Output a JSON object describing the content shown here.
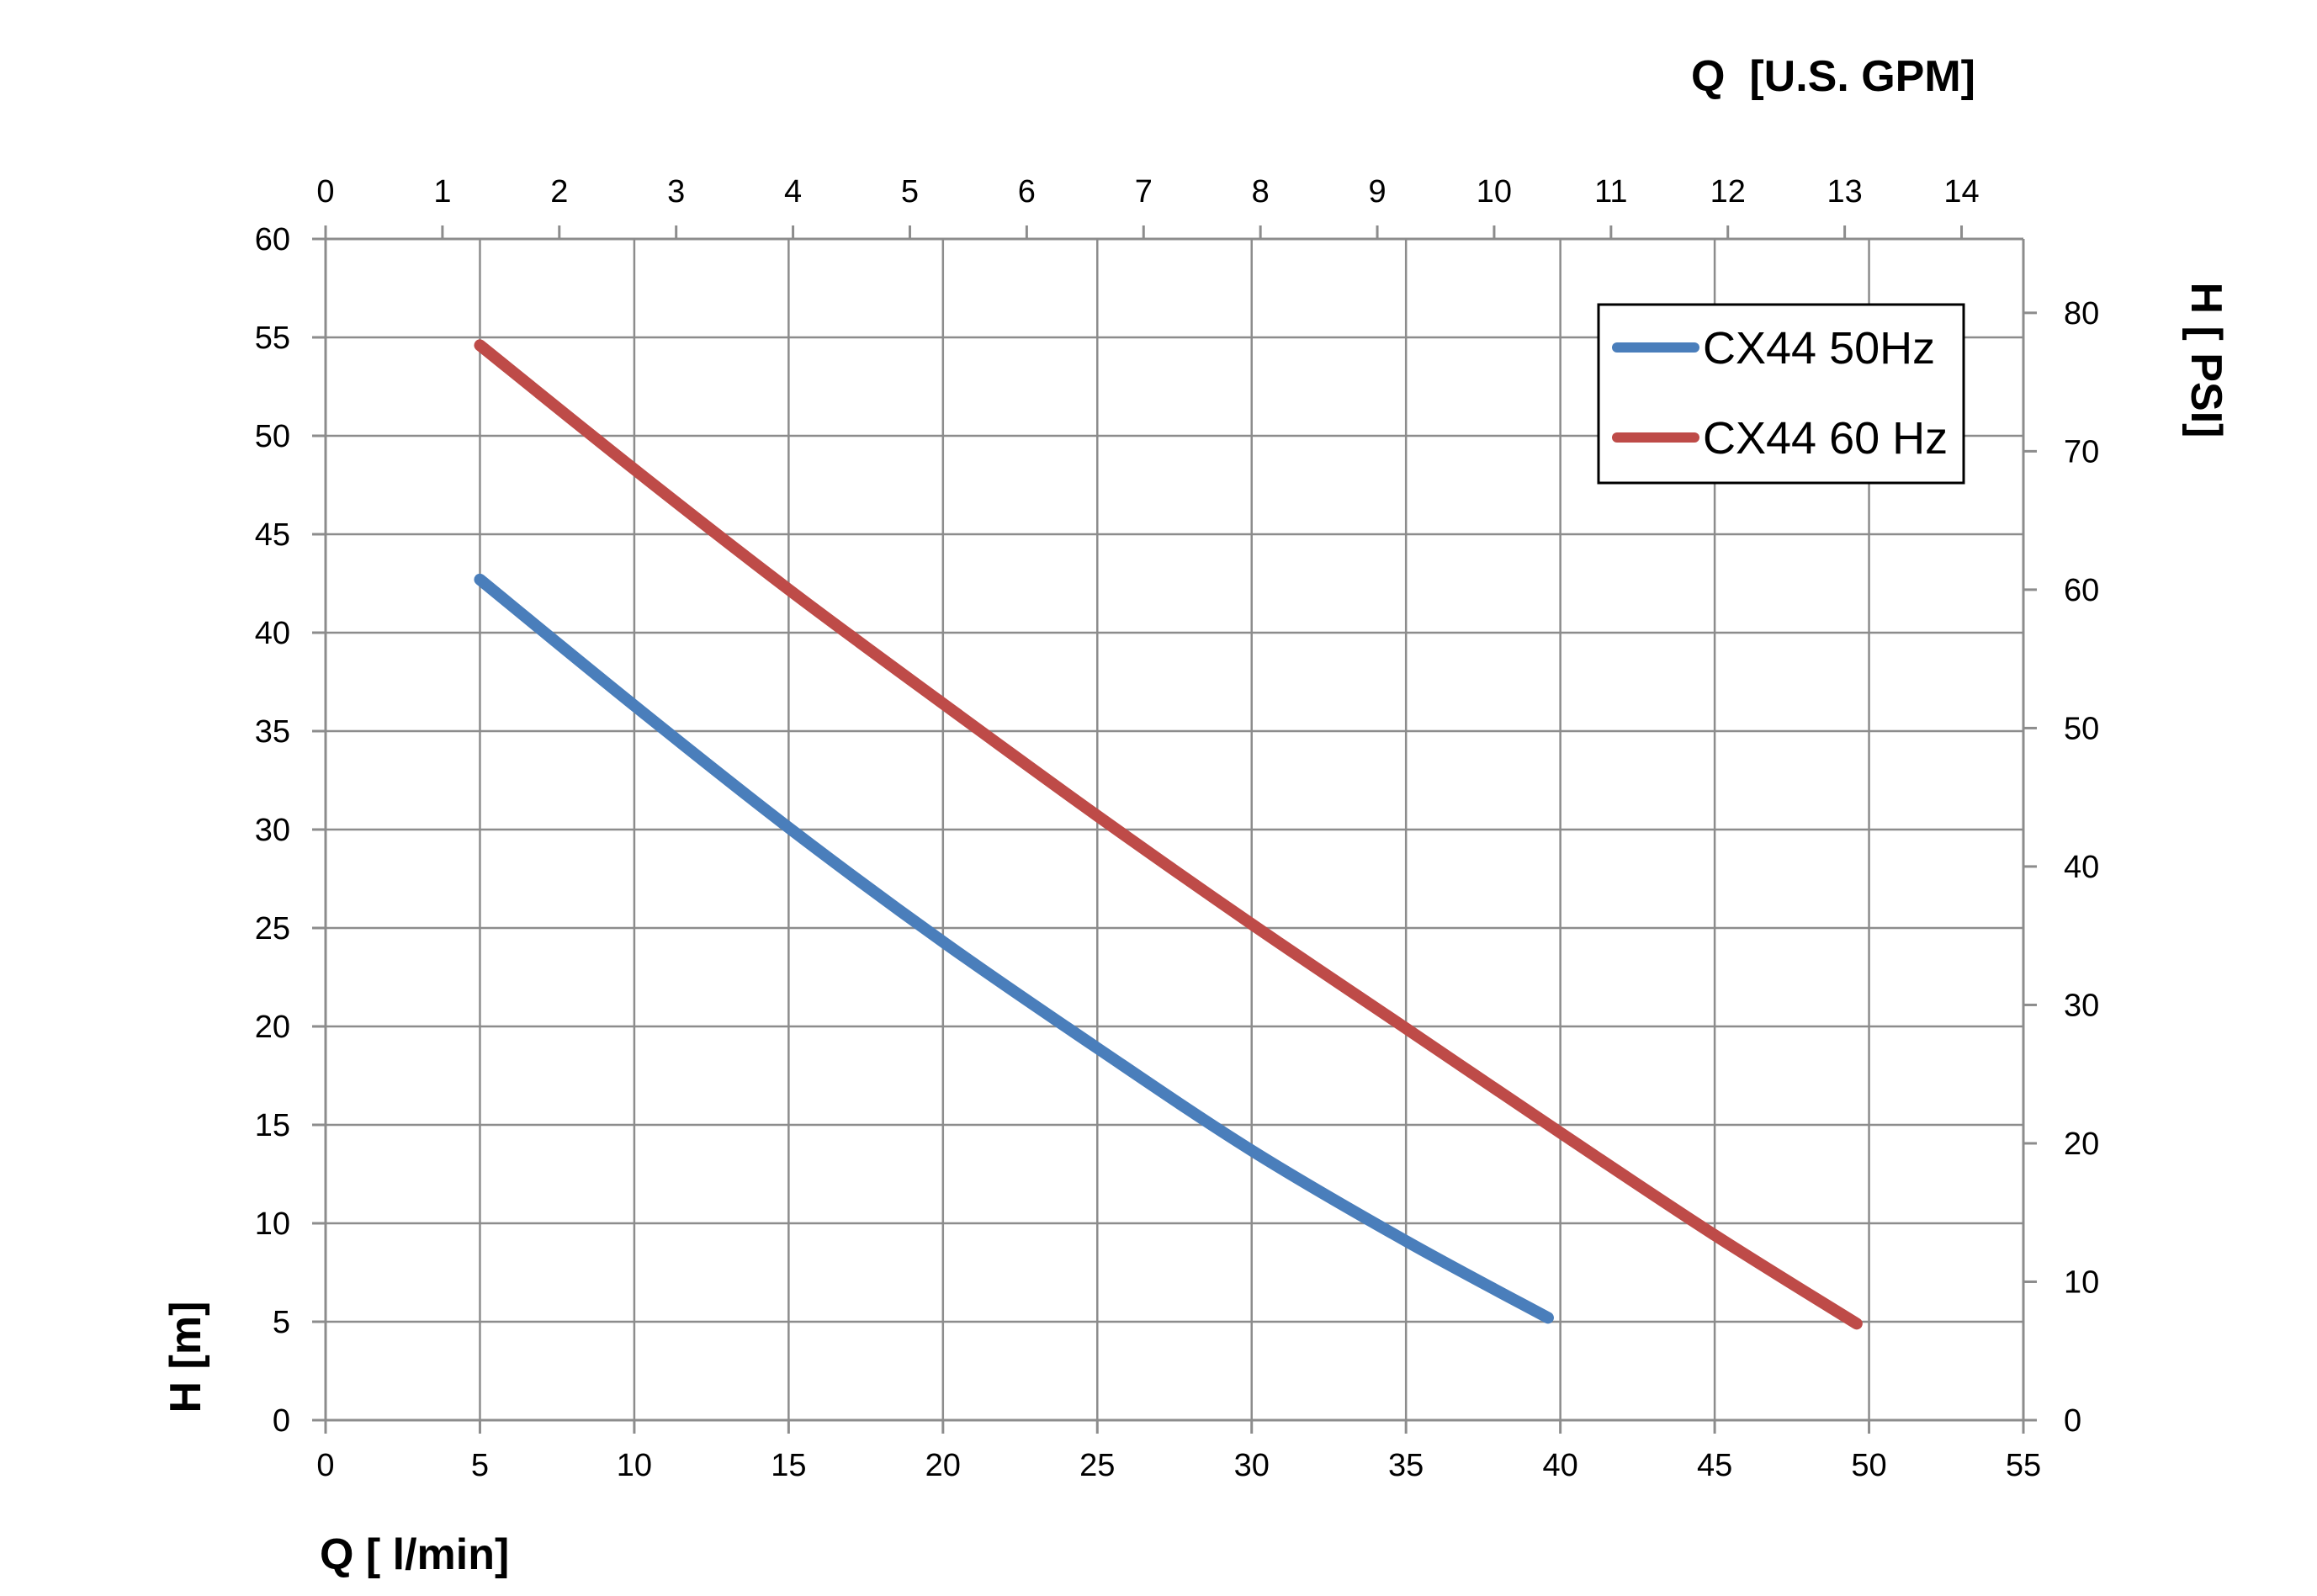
{
  "chart_data": {
    "type": "line",
    "title": "",
    "grid": true,
    "legend_position": "top-right",
    "axes": {
      "x_bottom": {
        "label": "Q [ l/min]",
        "range": [
          0,
          55
        ],
        "ticks": [
          0,
          5,
          10,
          15,
          20,
          25,
          30,
          35,
          40,
          45,
          50,
          55
        ]
      },
      "x_top": {
        "label": "Q  [U.S. GPM]",
        "range": [
          0,
          14.529
        ],
        "ticks": [
          0,
          1,
          2,
          3,
          4,
          5,
          6,
          7,
          8,
          9,
          10,
          11,
          12,
          13,
          14
        ]
      },
      "y_left": {
        "label": "H [m]",
        "range": [
          0,
          60
        ],
        "ticks": [
          0,
          5,
          10,
          15,
          20,
          25,
          30,
          35,
          40,
          45,
          50,
          55,
          60
        ]
      },
      "y_right": {
        "label": "H [ PSI]",
        "range": [
          0,
          85.34
        ],
        "ticks": [
          0,
          10,
          20,
          30,
          40,
          50,
          60,
          70,
          80
        ]
      }
    },
    "series": [
      {
        "name": "CX44 50Hz",
        "color": "#4a7ebb",
        "x": [
          5,
          10,
          15,
          20,
          25,
          30,
          35,
          39.6
        ],
        "y": [
          42.7,
          36.3,
          30.1,
          24.3,
          18.9,
          13.7,
          9.1,
          5.2
        ]
      },
      {
        "name": "CX44 60 Hz",
        "color": "#be4b48",
        "x": [
          5,
          10,
          15,
          20,
          25,
          30,
          35,
          40,
          45,
          49.6
        ],
        "y": [
          54.6,
          48.3,
          42.2,
          36.4,
          30.7,
          25.2,
          19.9,
          14.6,
          9.4,
          4.9
        ]
      }
    ]
  }
}
